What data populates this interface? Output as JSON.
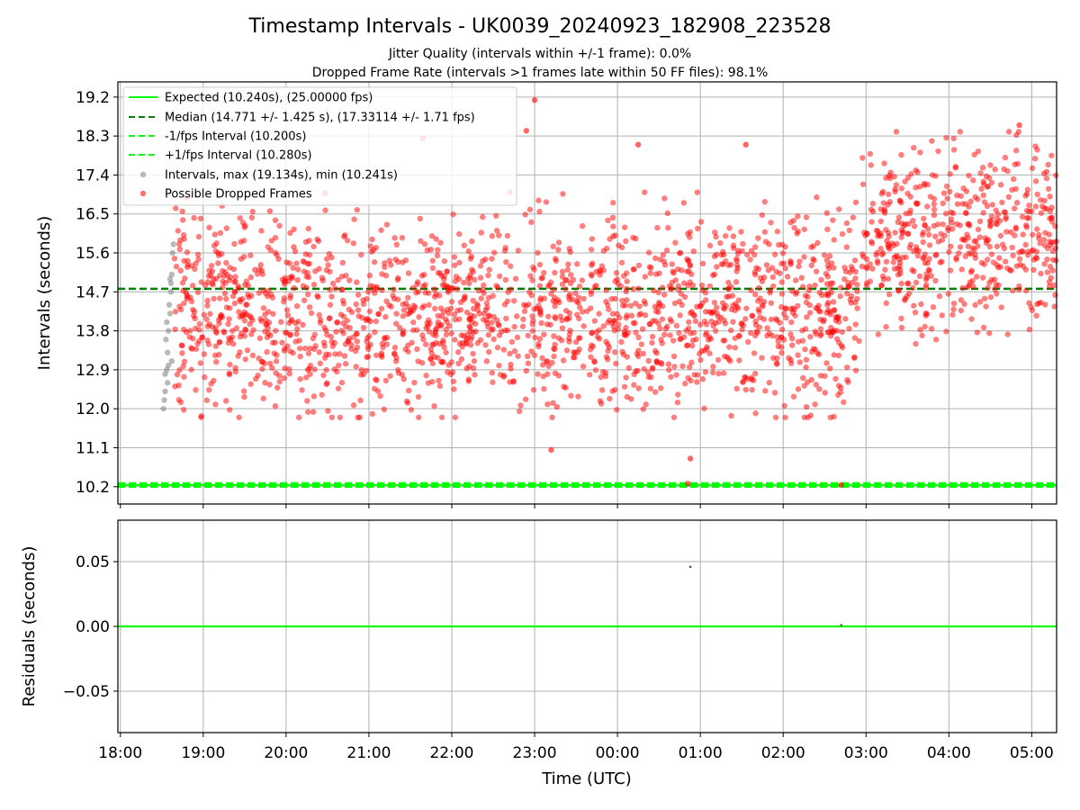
{
  "colors": {
    "expected": "#00ff00",
    "median": "#008000",
    "fps_minus": "#00ff00",
    "fps_plus": "#00ff00",
    "intervals": "#808080",
    "dropped": "#ff0000",
    "grid": "#b0b0b0"
  },
  "chart_data": [
    {
      "type": "scatter",
      "title": "Timestamp Intervals - UK0039_20240923_182908_223528",
      "subtitles": [
        "Jitter Quality (intervals within +/-1 frame): 0.0%",
        "Dropped Frame Rate (intervals >1 frames late within 50 FF files): 98.1%"
      ],
      "ylabel": "Intervals (seconds)",
      "ylim": [
        9.8,
        19.55
      ],
      "yticks": [
        "10.2",
        "11.1",
        "12.0",
        "12.9",
        "13.8",
        "14.7",
        "15.6",
        "16.5",
        "17.4",
        "18.3",
        "19.2"
      ],
      "grid": true,
      "legend_position": "top-left",
      "lines": [
        {
          "name": "Expected (10.240s), (25.00000 fps)",
          "y": 10.24,
          "style": "solid",
          "color_key": "expected"
        },
        {
          "name": "Median (14.771 +/- 1.425 s), (17.33114 +/- 1.71 fps)",
          "y": 14.771,
          "style": "dashed",
          "color_key": "median"
        },
        {
          "name": "-1/fps Interval (10.200s)",
          "y": 10.2,
          "style": "dashed",
          "color_key": "fps_minus"
        },
        {
          "name": "+1/fps Interval (10.280s)",
          "y": 10.28,
          "style": "dashed",
          "color_key": "fps_plus"
        }
      ],
      "series": [
        {
          "name": "Intervals, max (19.134s), min (10.241s)",
          "color_key": "intervals",
          "x_hours": [
            18.52,
            18.54,
            18.56,
            18.57,
            18.58,
            18.6,
            18.61,
            18.62,
            18.63,
            18.55,
            18.59,
            18.53,
            18.6,
            18.62,
            18.57,
            18.64,
            18.56,
            18.58,
            18.61,
            18.54
          ],
          "y": [
            12.0,
            12.4,
            12.9,
            13.3,
            13.8,
            14.2,
            14.7,
            15.1,
            15.6,
            13.6,
            14.4,
            12.2,
            15.0,
            13.1,
            12.6,
            15.8,
            14.0,
            13.0,
            14.9,
            12.8
          ]
        },
        {
          "name": "Possible Dropped Frames",
          "color_key": "dropped",
          "generated": true,
          "x_range_hours": [
            18.65,
            29.3
          ],
          "regions": [
            {
              "x": [
                18.65,
                26.95
              ],
              "center": 14.2,
              "spread": 1.1,
              "min": 11.8,
              "max": 17.0,
              "weight": 0.78
            },
            {
              "x": [
                26.95,
                29.3
              ],
              "center": 15.9,
              "spread": 1.0,
              "min": 13.0,
              "max": 18.4,
              "weight": 0.22
            }
          ],
          "outliers": [
            {
              "x": 23.0,
              "y": 19.13
            },
            {
              "x": 22.9,
              "y": 18.42
            },
            {
              "x": 23.2,
              "y": 11.05
            },
            {
              "x": 24.88,
              "y": 10.85
            },
            {
              "x": 24.85,
              "y": 10.27
            },
            {
              "x": 26.7,
              "y": 10.24
            },
            {
              "x": 28.85,
              "y": 18.55
            },
            {
              "x": 24.25,
              "y": 18.1
            },
            {
              "x": 25.55,
              "y": 18.1
            },
            {
              "x": 21.65,
              "y": 18.25
            }
          ]
        }
      ],
      "bottom_axis": {
        "shared": true
      }
    },
    {
      "type": "scatter",
      "ylabel": "Residuals (seconds)",
      "xlabel": "Time (UTC)",
      "ylim": [
        -0.082,
        0.082
      ],
      "yticks": [
        "−0.05",
        "0.00",
        "0.05"
      ],
      "ytick_values": [
        -0.05,
        0.0,
        0.05
      ],
      "grid": true,
      "zero_line": {
        "y": 0.0,
        "color_key": "expected"
      },
      "points": [
        {
          "x": 24.88,
          "y": 0.046
        },
        {
          "x": 26.7,
          "y": 0.001
        }
      ]
    }
  ],
  "x_axis": {
    "range_hours": [
      17.97,
      29.3
    ],
    "ticks": [
      "18:00",
      "19:00",
      "20:00",
      "21:00",
      "22:00",
      "23:00",
      "00:00",
      "01:00",
      "02:00",
      "03:00",
      "04:00",
      "05:00"
    ],
    "tick_values": [
      18,
      19,
      20,
      21,
      22,
      23,
      24,
      25,
      26,
      27,
      28,
      29
    ]
  }
}
